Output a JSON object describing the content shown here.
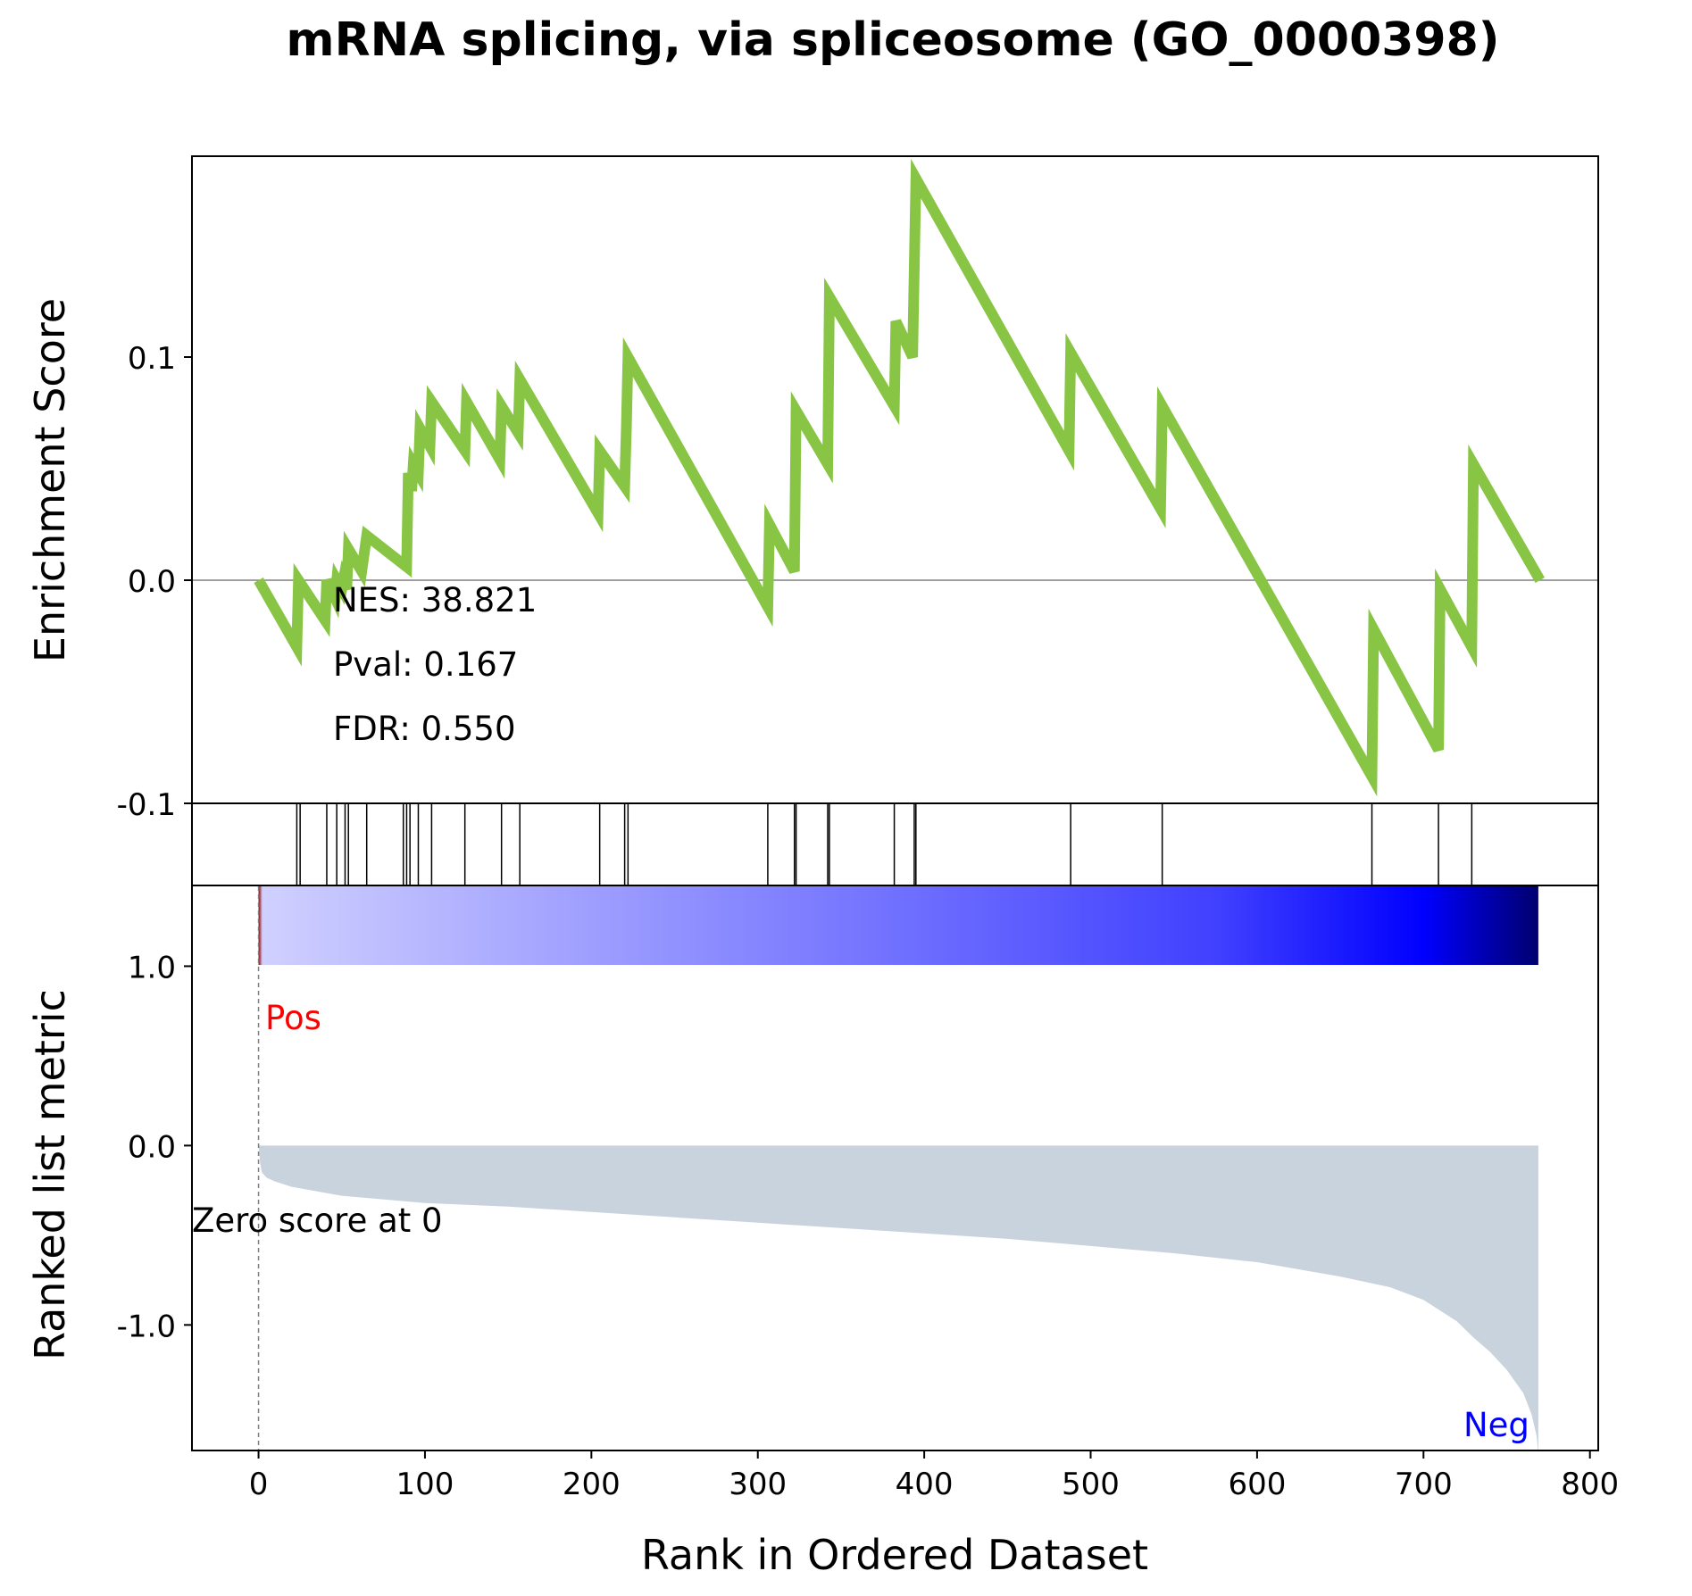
{
  "chart_data": {
    "type": "line",
    "title": "mRNA splicing, via spliceosome (GO_0000398)",
    "xlabel": "Rank in Ordered Dataset",
    "xlim": [
      -40,
      805
    ],
    "xticks": [
      0,
      100,
      200,
      300,
      400,
      500,
      600,
      700,
      800
    ],
    "enrichment": {
      "ylabel": "Enrichment Score",
      "ylim": [
        -0.1,
        0.19
      ],
      "yticks": [
        -0.1,
        0.0,
        0.1
      ],
      "ytick_labels": [
        "-0.1",
        "0.0",
        "0.1"
      ],
      "line_color": "#88c544",
      "zero_line": true,
      "points": [
        [
          0,
          0.0
        ],
        [
          23,
          -0.03
        ],
        [
          24,
          0.0
        ],
        [
          40,
          -0.018
        ],
        [
          41,
          0.0
        ],
        [
          46,
          -0.008
        ],
        [
          47,
          0.0
        ],
        [
          50,
          -0.004
        ],
        [
          51,
          0.0
        ],
        [
          53,
          -0.004
        ],
        [
          54,
          0.014
        ],
        [
          62,
          0.004
        ],
        [
          65,
          0.02
        ],
        [
          89,
          0.006
        ],
        [
          90,
          0.048
        ],
        [
          92,
          0.04
        ],
        [
          93,
          0.052
        ],
        [
          96,
          0.048
        ],
        [
          97,
          0.068
        ],
        [
          103,
          0.06
        ],
        [
          104,
          0.08
        ],
        [
          124,
          0.058
        ],
        [
          125,
          0.08
        ],
        [
          145,
          0.054
        ],
        [
          146,
          0.078
        ],
        [
          156,
          0.066
        ],
        [
          157,
          0.09
        ],
        [
          204,
          0.03
        ],
        [
          205,
          0.058
        ],
        [
          220,
          0.042
        ],
        [
          221,
          0.068
        ],
        [
          222,
          0.1
        ],
        [
          306,
          -0.012
        ],
        [
          307,
          0.025
        ],
        [
          322,
          0.004
        ],
        [
          323,
          0.076
        ],
        [
          342,
          0.052
        ],
        [
          343,
          0.127
        ],
        [
          382,
          0.078
        ],
        [
          383,
          0.116
        ],
        [
          393,
          0.1
        ],
        [
          395,
          0.18
        ],
        [
          487,
          0.058
        ],
        [
          488,
          0.102
        ],
        [
          542,
          0.032
        ],
        [
          543,
          0.078
        ],
        [
          669,
          -0.088
        ],
        [
          670,
          -0.022
        ],
        [
          709,
          -0.076
        ],
        [
          710,
          -0.004
        ],
        [
          729,
          -0.03
        ],
        [
          730,
          0.052
        ],
        [
          770,
          0.0
        ]
      ]
    },
    "hits": [
      23,
      25,
      41,
      47,
      52,
      54,
      65,
      87,
      89,
      91,
      96,
      104,
      124,
      146,
      157,
      205,
      220,
      222,
      306,
      322,
      323,
      342,
      343,
      382,
      394,
      395,
      488,
      543,
      669,
      709,
      729
    ],
    "ranked_metric": {
      "ylabel": "Ranked list metric",
      "ylim": [
        -1.7,
        1.45
      ],
      "yticks": [
        -1.0,
        0.0,
        1.0
      ],
      "ytick_labels": [
        "-1.0",
        "0.0",
        "1.0"
      ],
      "fill_color": "#c9d3dd",
      "x": [
        0,
        1,
        2,
        5,
        10,
        20,
        50,
        100,
        150,
        200,
        250,
        300,
        350,
        400,
        450,
        500,
        550,
        600,
        650,
        680,
        700,
        720,
        730,
        740,
        750,
        760,
        765,
        768,
        769
      ],
      "y": [
        0.0,
        -0.1,
        -0.15,
        -0.18,
        -0.2,
        -0.23,
        -0.28,
        -0.32,
        -0.34,
        -0.37,
        -0.4,
        -0.43,
        -0.46,
        -0.49,
        -0.52,
        -0.56,
        -0.6,
        -0.65,
        -0.73,
        -0.79,
        -0.86,
        -0.98,
        -1.07,
        -1.15,
        -1.25,
        -1.38,
        -1.5,
        -1.62,
        -1.72
      ],
      "zero_score_label": "Zero score at 0",
      "pos_label": "Pos",
      "neg_label": "Neg",
      "pos_color": "#ff0000",
      "neg_color": "#0000ff",
      "heatmap_stops": [
        "#8b0000",
        "#d0d0ff",
        "#a0a0ff",
        "#7070ff",
        "#4040ff",
        "#0000ff",
        "#00006e"
      ]
    },
    "stats": {
      "nes": "NES: 38.821",
      "pval": "Pval: 0.167",
      "fdr": "FDR: 0.550"
    }
  }
}
